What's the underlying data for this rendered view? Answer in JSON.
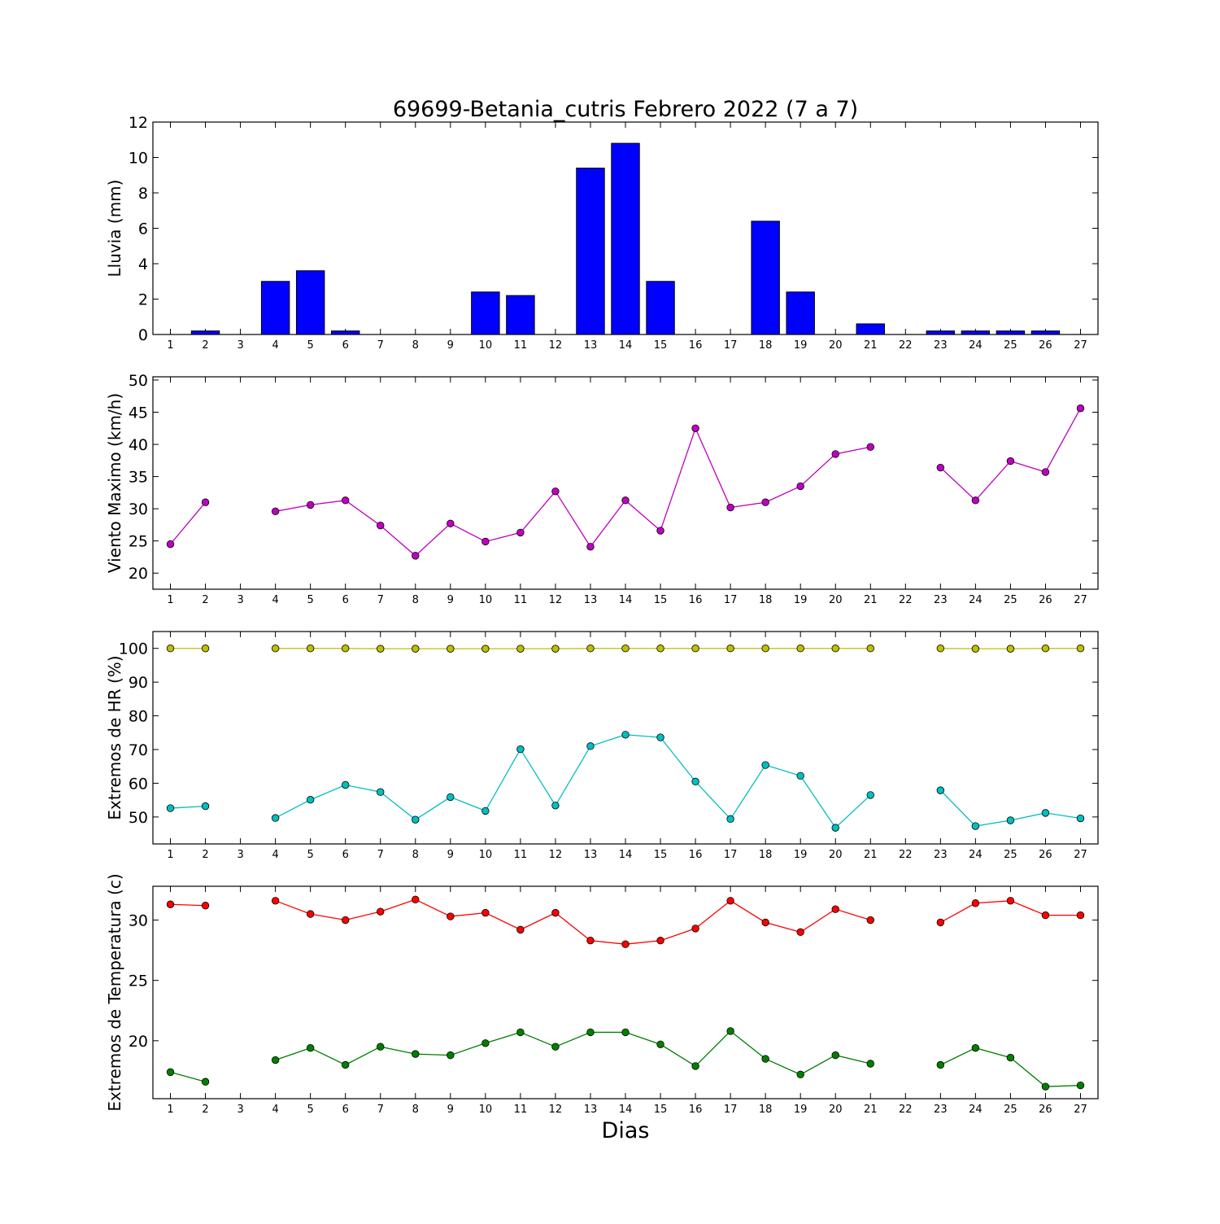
{
  "title": "69699-Betania_cutris Febrero 2022  (7 a 7)",
  "xlabel": "Dias",
  "x_ticks": [
    1,
    2,
    3,
    4,
    5,
    6,
    7,
    8,
    9,
    10,
    11,
    12,
    13,
    14,
    15,
    16,
    17,
    18,
    19,
    20,
    21,
    22,
    23,
    24,
    25,
    26,
    27
  ],
  "chart_data": [
    {
      "type": "bar",
      "ylabel": "Lluvia (mm)",
      "ylim": [
        0,
        12
      ],
      "yticks": [
        0,
        2,
        4,
        6,
        8,
        10,
        12
      ],
      "categories": [
        1,
        2,
        3,
        4,
        5,
        6,
        7,
        8,
        9,
        10,
        11,
        12,
        13,
        14,
        15,
        16,
        17,
        18,
        19,
        20,
        21,
        22,
        23,
        24,
        25,
        26,
        27
      ],
      "series": [
        {
          "color": "#0000ff",
          "values": [
            0,
            0.2,
            0,
            3.0,
            3.6,
            0.2,
            0,
            0,
            0,
            2.4,
            2.2,
            0,
            9.4,
            10.8,
            3.0,
            0,
            0,
            6.4,
            2.4,
            0,
            0.6,
            0,
            0.2,
            0.2,
            0.2,
            0.2,
            0
          ]
        }
      ]
    },
    {
      "type": "line",
      "ylabel": "Viento Maximo (km/h)",
      "ylim": [
        17.5,
        50.5
      ],
      "yticks": [
        20,
        25,
        30,
        35,
        40,
        45,
        50
      ],
      "x": [
        1,
        2,
        3,
        4,
        5,
        6,
        7,
        8,
        9,
        10,
        11,
        12,
        13,
        14,
        15,
        16,
        17,
        18,
        19,
        20,
        21,
        22,
        23,
        24,
        25,
        26,
        27
      ],
      "series": [
        {
          "color": "#bf00bf",
          "values": [
            24.5,
            31.0,
            null,
            29.6,
            30.6,
            31.3,
            27.4,
            22.7,
            27.7,
            24.9,
            26.3,
            32.7,
            24.1,
            31.3,
            26.6,
            42.5,
            30.2,
            31.0,
            33.5,
            38.5,
            39.6,
            null,
            36.4,
            31.3,
            37.4,
            35.7,
            45.6
          ]
        }
      ]
    },
    {
      "type": "line",
      "ylabel": "Extremos de HR (%)",
      "ylim": [
        42,
        105
      ],
      "yticks": [
        50,
        60,
        70,
        80,
        90,
        100
      ],
      "x": [
        1,
        2,
        3,
        4,
        5,
        6,
        7,
        8,
        9,
        10,
        11,
        12,
        13,
        14,
        15,
        16,
        17,
        18,
        19,
        20,
        21,
        22,
        23,
        24,
        25,
        26,
        27
      ],
      "series": [
        {
          "color": "#bfbf00",
          "values": [
            100,
            100,
            null,
            100,
            100,
            100,
            99.9,
            99.9,
            99.9,
            99.9,
            99.9,
            99.9,
            100,
            100,
            100,
            100,
            100,
            100,
            100,
            100,
            100,
            null,
            100,
            99.9,
            99.9,
            100,
            100
          ]
        },
        {
          "color": "#00bfbf",
          "values": [
            52.6,
            53.2,
            null,
            49.7,
            55.1,
            59.5,
            57.4,
            49.2,
            55.9,
            51.8,
            70.1,
            53.4,
            71.0,
            74.4,
            73.6,
            60.5,
            49.4,
            65.4,
            62.2,
            46.8,
            56.5,
            null,
            57.9,
            47.3,
            49.0,
            51.2,
            49.6
          ]
        }
      ]
    },
    {
      "type": "line",
      "ylabel": "Extremos de Temperatura (c)",
      "ylim": [
        15.2,
        32.8
      ],
      "yticks": [
        20,
        25,
        30
      ],
      "x": [
        1,
        2,
        3,
        4,
        5,
        6,
        7,
        8,
        9,
        10,
        11,
        12,
        13,
        14,
        15,
        16,
        17,
        18,
        19,
        20,
        21,
        22,
        23,
        24,
        25,
        26,
        27
      ],
      "series": [
        {
          "color": "#ff0000",
          "values": [
            31.3,
            31.2,
            null,
            31.6,
            30.5,
            30.0,
            30.7,
            31.7,
            30.3,
            30.6,
            29.2,
            30.6,
            28.3,
            28.0,
            28.3,
            29.3,
            31.6,
            29.8,
            29.0,
            30.9,
            30.0,
            null,
            29.8,
            31.4,
            31.6,
            30.4,
            30.4
          ]
        },
        {
          "color": "#008000",
          "values": [
            17.4,
            16.6,
            null,
            18.4,
            19.4,
            18.0,
            19.5,
            18.9,
            18.8,
            19.8,
            20.7,
            19.5,
            20.7,
            20.7,
            19.7,
            17.9,
            20.8,
            18.5,
            17.2,
            18.8,
            18.1,
            null,
            18.0,
            19.4,
            18.6,
            16.2,
            16.3
          ]
        }
      ]
    }
  ]
}
